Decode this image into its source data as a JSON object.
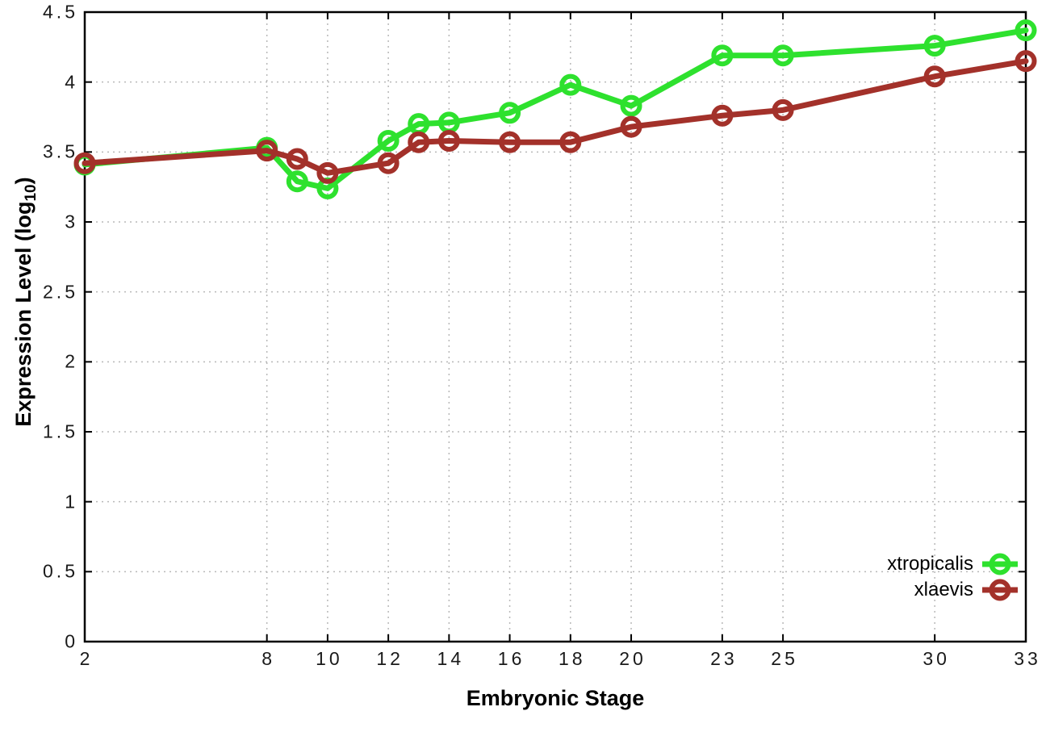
{
  "chart_data": {
    "type": "line",
    "title": "",
    "xlabel": "Embryonic Stage",
    "ylabel": "Expression Level (log10)",
    "ylabel_main": "Expression Level (log",
    "ylabel_sub": "10",
    "ylabel_close": ")",
    "x": [
      2,
      8,
      9,
      10,
      12,
      13,
      14,
      16,
      18,
      20,
      23,
      25,
      30,
      33
    ],
    "xticks": [
      2,
      8,
      10,
      12,
      14,
      16,
      18,
      20,
      23,
      25,
      30,
      33
    ],
    "yticks": [
      0,
      0.5,
      1,
      1.5,
      2,
      2.5,
      3,
      3.5,
      4,
      4.5
    ],
    "xlim": [
      2,
      33
    ],
    "ylim": [
      0,
      4.5
    ],
    "grid": true,
    "legend_position": "inside-bottom-right",
    "series": [
      {
        "name": "xtropicalis",
        "color": "#2ee12e",
        "values": [
          3.41,
          3.53,
          3.29,
          3.24,
          3.58,
          3.7,
          3.71,
          3.78,
          3.98,
          3.83,
          4.19,
          4.19,
          4.26,
          4.37
        ]
      },
      {
        "name": "xlaevis",
        "color": "#a3312a",
        "values": [
          3.42,
          3.51,
          3.45,
          3.35,
          3.42,
          3.57,
          3.58,
          3.57,
          3.57,
          3.68,
          3.76,
          3.8,
          4.04,
          4.15
        ]
      }
    ]
  },
  "style_colors": {
    "grid": "#b8b8b8",
    "axis": "#000000",
    "tick_text": "#1a1a1a"
  }
}
